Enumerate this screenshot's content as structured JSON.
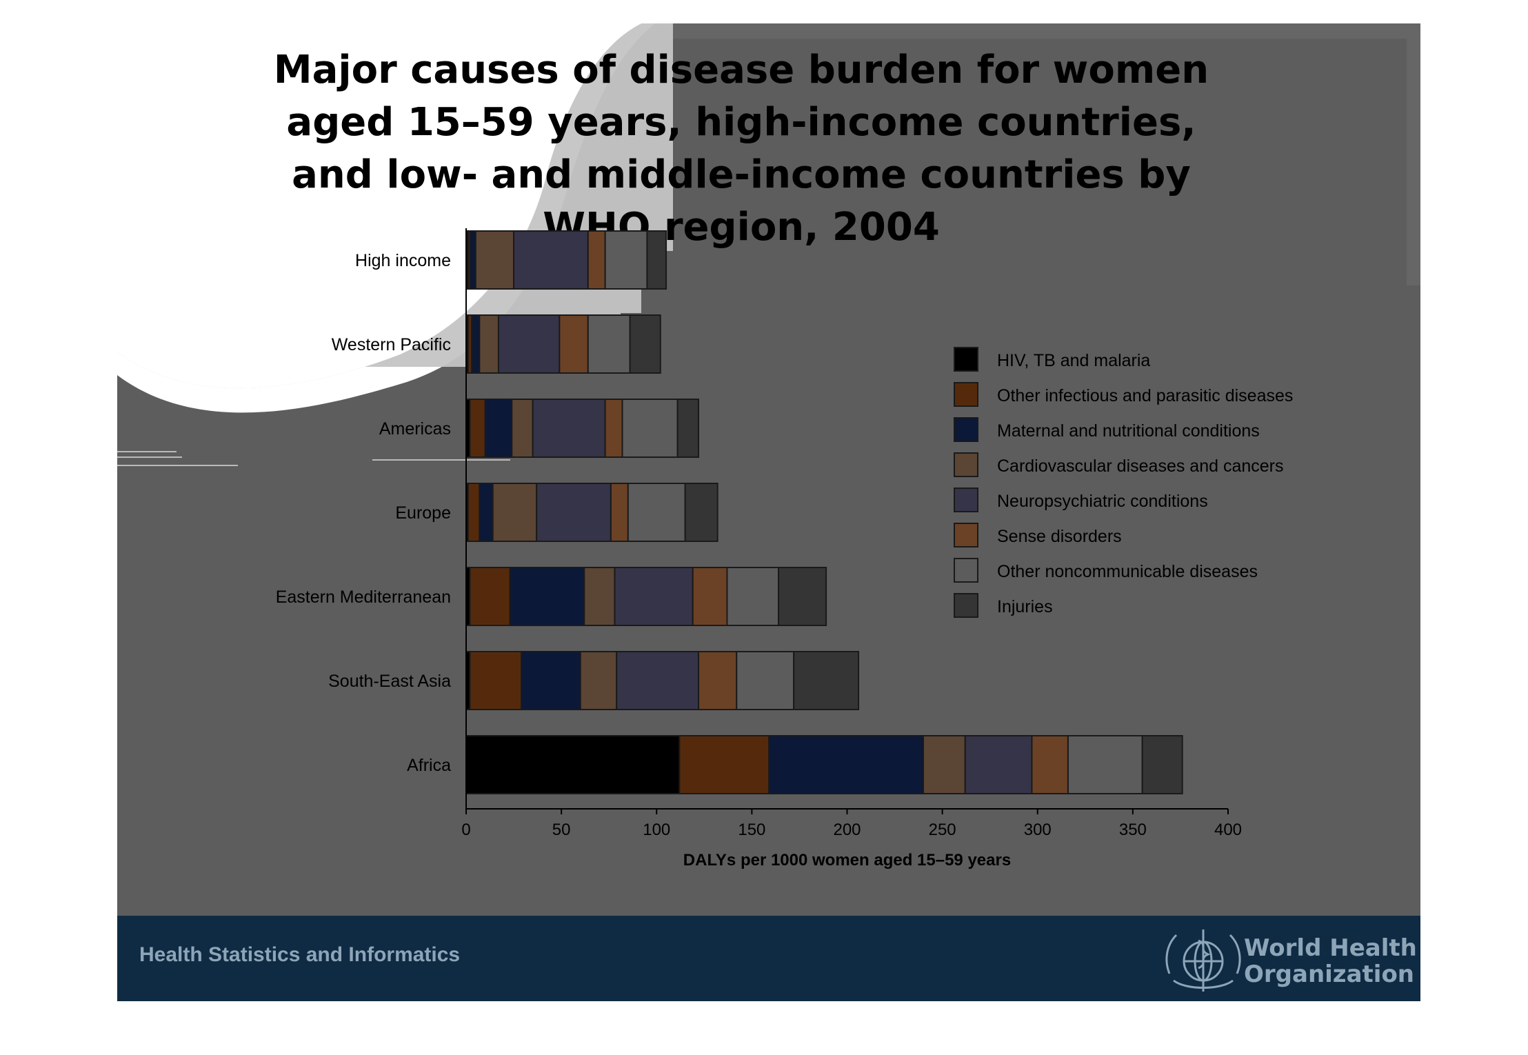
{
  "title": "Major causes of disease burden for women aged 15–59 years, high-income countries, and low- and middle-income countries by WHO region, 2004",
  "footer": {
    "left_text": "Health Statistics and Informatics",
    "org_line1": "World Health",
    "org_line2": "Organization"
  },
  "chart_data": {
    "type": "bar",
    "orientation": "horizontal",
    "stacked": true,
    "title": "Major causes of disease burden for women aged 15–59 years, high-income countries, and low- and middle-income countries by WHO region, 2004",
    "xlabel": "DALYs per 1000 women aged 15–59 years",
    "ylabel": "",
    "xlim": [
      0,
      400
    ],
    "xticks": [
      "0",
      "50",
      "100",
      "150",
      "200",
      "250",
      "300",
      "350",
      "400"
    ],
    "grid": false,
    "legend_position": "right",
    "categories": [
      "High income",
      "Western Pacific",
      "Americas",
      "Europe",
      "Eastern Mediterranean",
      "South-East Asia",
      "Africa"
    ],
    "series": [
      {
        "name": "HIV, TB and malaria",
        "color": "#000000",
        "values": [
          1,
          1,
          2,
          1,
          2,
          2,
          112
        ]
      },
      {
        "name": "Other infectious and parasitic diseases",
        "color": "#552a0c",
        "values": [
          1,
          2,
          8,
          6,
          21,
          27,
          47
        ]
      },
      {
        "name": "Maternal and nutritional conditions",
        "color": "#0b1838",
        "values": [
          3,
          4,
          14,
          7,
          39,
          31,
          81
        ]
      },
      {
        "name": "Cardiovascular diseases and cancers",
        "color": "#5b4535",
        "values": [
          20,
          10,
          11,
          23,
          16,
          19,
          22
        ]
      },
      {
        "name": "Neuropsychiatric conditions",
        "color": "#363448",
        "values": [
          39,
          32,
          38,
          39,
          41,
          43,
          35
        ]
      },
      {
        "name": "Sense disorders",
        "color": "#6b4226",
        "values": [
          9,
          15,
          9,
          9,
          18,
          20,
          19
        ]
      },
      {
        "name": "Other noncommunicable diseases",
        "color": "#5c5c5c",
        "values": [
          22,
          22,
          29,
          30,
          27,
          30,
          39
        ]
      },
      {
        "name": "Injuries",
        "color": "#353535",
        "values": [
          10,
          16,
          11,
          17,
          25,
          34,
          21
        ]
      }
    ]
  }
}
